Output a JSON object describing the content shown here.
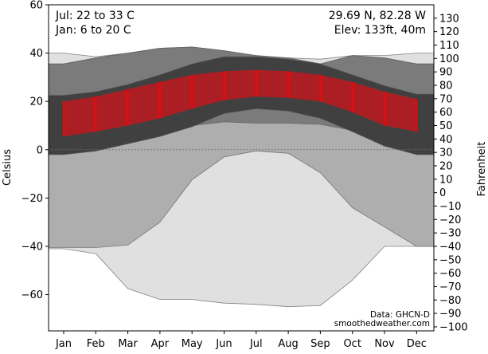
{
  "chart_data": {
    "type": "area",
    "months": [
      "Jan",
      "Feb",
      "Mar",
      "Apr",
      "May",
      "Jun",
      "Jul",
      "Aug",
      "Sep",
      "Oct",
      "Nov",
      "Dec"
    ],
    "ylabel_left": "Celsius",
    "ylabel_right": "Fahrenheit",
    "ylim_celsius": [
      -75,
      60
    ],
    "yticks_celsius": [
      -60,
      -40,
      -20,
      0,
      20,
      40,
      60
    ],
    "yticks_fahrenheit": [
      -100,
      -90,
      -80,
      -70,
      -60,
      -50,
      -40,
      -30,
      -20,
      -10,
      0,
      10,
      20,
      30,
      40,
      50,
      60,
      70,
      80,
      90,
      100,
      110,
      120,
      130
    ],
    "zero_line": 0,
    "info": {
      "jul_range": "Jul: 22 to 33 C",
      "jan_range": "Jan: 6 to 20 C",
      "coords": "29.69 N, 82.28 W",
      "elev": "Elev: 133ft, 40m"
    },
    "credit": {
      "source": "Data: GHCN-D",
      "site": "smoothedweather.com"
    },
    "series": [
      {
        "name": "record_range",
        "color": "#e0e0e0",
        "upper": [
          40,
          38.5,
          40,
          42,
          42.5,
          41,
          38,
          38,
          37.5,
          39,
          39,
          40
        ],
        "lower": [
          -41,
          -43,
          -57.5,
          -62,
          -62,
          -63.5,
          -64,
          -65,
          -64.5,
          -54,
          -40,
          -40
        ]
      },
      {
        "name": "extreme_range",
        "color": "#aeaeae",
        "upper": [
          35.5,
          38,
          40,
          42,
          42.5,
          41,
          39,
          38,
          35.5,
          39,
          38,
          35.5
        ],
        "lower": [
          -40.5,
          -40.5,
          -39.5,
          -30,
          -12.5,
          -3,
          -0.5,
          -1.5,
          -9.5,
          -24,
          -32,
          -40
        ]
      },
      {
        "name": "typical_extremes",
        "color": "#7b7b7b",
        "upper": [
          35.5,
          38,
          40,
          42,
          42.5,
          41,
          39,
          38,
          35.5,
          39,
          38,
          35.5
        ],
        "lower": [
          -2,
          -0.5,
          2.5,
          5.5,
          10,
          11.5,
          11,
          11,
          10.5,
          8,
          2,
          -2
        ]
      },
      {
        "name": "normal_range",
        "color": "#404040",
        "upper": [
          22.5,
          24,
          27,
          31,
          35.5,
          38.5,
          38.5,
          37.5,
          35.5,
          31,
          26.5,
          23
        ],
        "lower": [
          -2,
          -0.5,
          2.5,
          5.5,
          9.5,
          15,
          17,
          16,
          13,
          7.5,
          1.5,
          -2
        ]
      },
      {
        "name": "daily_range_mean",
        "color": "#ab1f24",
        "bar_color": "#ff0000",
        "upper": [
          20,
          22,
          25,
          28,
          31,
          32.5,
          33,
          32.5,
          31,
          28,
          24,
          21
        ],
        "lower": [
          5.5,
          7.5,
          10,
          13,
          17,
          20.5,
          22,
          21.5,
          20,
          15.5,
          10,
          7.5
        ]
      }
    ]
  }
}
